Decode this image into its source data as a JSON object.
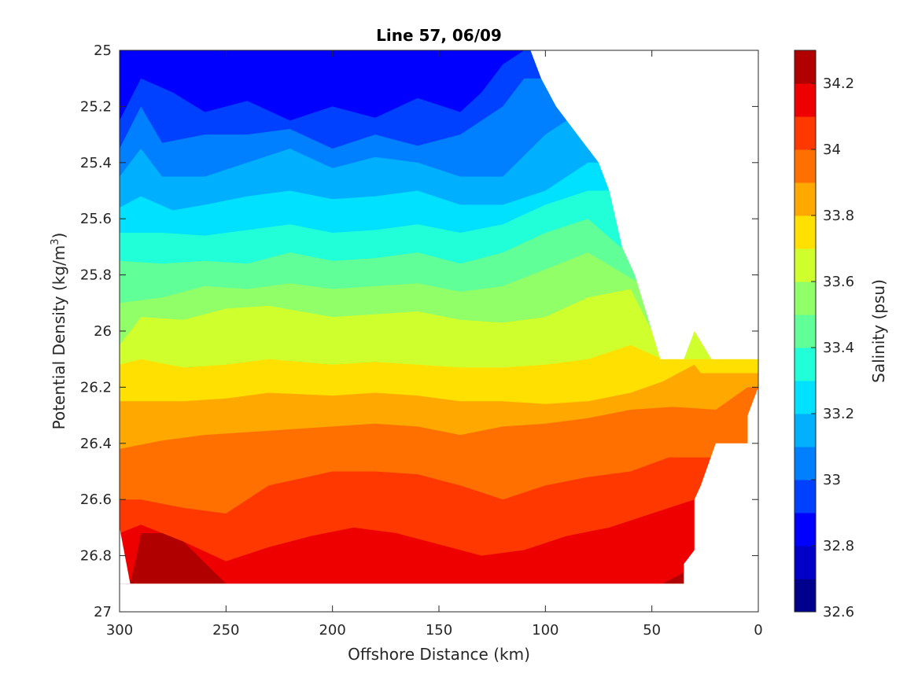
{
  "chart_data": {
    "type": "contourf",
    "title": "Line 57, 06/09",
    "xlabel": "Offshore Distance (km)",
    "ylabel_base": "Potential Density (kg/m",
    "ylabel_sup": "3",
    "ylabel_close": ")",
    "colorbar_label": "Salinity (psu)",
    "xlim": [
      300,
      0
    ],
    "ylim": [
      25,
      27
    ],
    "y_reversed": true,
    "x_ticks": [
      300,
      250,
      200,
      150,
      100,
      50,
      0
    ],
    "x_tick_labels": [
      "300",
      "250",
      "200",
      "150",
      "100",
      "50",
      "0"
    ],
    "y_ticks": [
      25,
      25.2,
      25.4,
      25.6,
      25.8,
      26,
      26.2,
      26.4,
      26.6,
      26.8,
      27
    ],
    "y_tick_labels": [
      "25",
      "25.2",
      "25.4",
      "25.6",
      "25.8",
      "26",
      "26.2",
      "26.4",
      "26.6",
      "26.8",
      "27"
    ],
    "colorbar": {
      "limits": [
        32.6,
        34.3
      ],
      "levels": [
        32.6,
        32.7,
        32.8,
        32.9,
        33.0,
        33.1,
        33.2,
        33.3,
        33.4,
        33.5,
        33.6,
        33.7,
        33.8,
        33.9,
        34.0,
        34.1,
        34.2,
        34.3
      ],
      "tick_values": [
        32.6,
        32.8,
        33.0,
        33.2,
        33.4,
        33.6,
        33.8,
        34.0,
        34.2
      ],
      "tick_labels": [
        "32.6",
        "32.8",
        "33",
        "33.2",
        "33.4",
        "33.6",
        "33.8",
        "34",
        "34.2"
      ],
      "colors": [
        "#00008f",
        "#0000c8",
        "#0000ff",
        "#0040ff",
        "#0080ff",
        "#00b0ff",
        "#00e0ff",
        "#20ffd8",
        "#60ff98",
        "#90ff68",
        "#d0ff2e",
        "#ffe000",
        "#ffa800",
        "#ff7000",
        "#ff3800",
        "#ee0000",
        "#b00000"
      ]
    },
    "data_region": {
      "right_edge_x": [
        107,
        102,
        95,
        85,
        75,
        70,
        64,
        58,
        50,
        46,
        43,
        35,
        30,
        22,
        15,
        10,
        0,
        0,
        5,
        5,
        20,
        27,
        30,
        30,
        35,
        35,
        42,
        295
      ],
      "right_edge_y": [
        25,
        25.1,
        25.2,
        25.3,
        25.4,
        25.5,
        25.7,
        25.8,
        26.0,
        26.1,
        26.1,
        26.1,
        26.0,
        26.1,
        26.1,
        26.1,
        26.1,
        26.2,
        26.3,
        26.4,
        26.4,
        26.55,
        26.6,
        26.78,
        26.83,
        26.9,
        26.9,
        26.9
      ]
    },
    "contour_bands": [
      {
        "level": 32.9,
        "x": [
          300,
          290,
          275,
          260,
          240,
          220,
          200,
          180,
          160,
          140,
          130,
          120,
          110,
          107
        ],
        "y": [
          25.25,
          25.1,
          25.15,
          25.22,
          25.18,
          25.25,
          25.2,
          25.24,
          25.17,
          25.22,
          25.15,
          25.05,
          25,
          25
        ]
      },
      {
        "level": 33.0,
        "x": [
          300,
          290,
          280,
          260,
          240,
          220,
          200,
          180,
          160,
          140,
          120,
          110,
          100
        ],
        "y": [
          25.35,
          25.2,
          25.33,
          25.3,
          25.3,
          25.28,
          25.35,
          25.3,
          25.34,
          25.3,
          25.2,
          25.1,
          25.1
        ]
      },
      {
        "level": 33.1,
        "x": [
          300,
          290,
          280,
          260,
          240,
          220,
          200,
          180,
          160,
          140,
          120,
          100,
          90,
          85
        ],
        "y": [
          25.45,
          25.35,
          25.45,
          25.45,
          25.4,
          25.35,
          25.42,
          25.38,
          25.4,
          25.45,
          25.45,
          25.3,
          25.25,
          25.3
        ]
      },
      {
        "level": 33.2,
        "x": [
          300,
          290,
          275,
          260,
          240,
          220,
          200,
          180,
          160,
          140,
          120,
          100,
          80,
          75
        ],
        "y": [
          25.56,
          25.52,
          25.57,
          25.55,
          25.52,
          25.5,
          25.53,
          25.52,
          25.5,
          25.55,
          25.55,
          25.5,
          25.4,
          25.4
        ]
      },
      {
        "level": 33.3,
        "x": [
          300,
          280,
          260,
          240,
          220,
          200,
          180,
          160,
          140,
          120,
          100,
          80,
          70
        ],
        "y": [
          25.65,
          25.65,
          25.66,
          25.64,
          25.62,
          25.65,
          25.64,
          25.62,
          25.65,
          25.62,
          25.55,
          25.5,
          25.5
        ]
      },
      {
        "level": 33.4,
        "x": [
          300,
          280,
          260,
          240,
          220,
          200,
          180,
          160,
          140,
          120,
          100,
          80,
          65
        ],
        "y": [
          25.75,
          25.76,
          25.75,
          25.76,
          25.72,
          25.75,
          25.74,
          25.72,
          25.76,
          25.72,
          25.65,
          25.6,
          25.7
        ]
      },
      {
        "level": 33.5,
        "x": [
          300,
          280,
          260,
          240,
          220,
          200,
          180,
          160,
          140,
          120,
          100,
          80,
          58
        ],
        "y": [
          25.9,
          25.88,
          25.84,
          25.85,
          25.83,
          25.85,
          25.84,
          25.83,
          25.86,
          25.84,
          25.78,
          25.72,
          25.82
        ]
      },
      {
        "level": 33.6,
        "x": [
          300,
          290,
          270,
          250,
          230,
          200,
          180,
          160,
          140,
          120,
          100,
          80,
          60,
          50
        ],
        "y": [
          26.05,
          25.95,
          25.96,
          25.92,
          25.91,
          25.95,
          25.94,
          25.93,
          25.96,
          25.97,
          25.95,
          25.88,
          25.85,
          26.0
        ]
      },
      {
        "level": 33.7,
        "x": [
          300,
          290,
          270,
          250,
          230,
          200,
          180,
          160,
          140,
          120,
          100,
          80,
          60,
          45
        ],
        "y": [
          26.12,
          26.1,
          26.13,
          26.12,
          26.1,
          26.12,
          26.11,
          26.12,
          26.13,
          26.13,
          26.12,
          26.1,
          26.05,
          26.1
        ]
      },
      {
        "level": 33.8,
        "x": [
          300,
          290,
          270,
          250,
          230,
          200,
          180,
          160,
          140,
          120,
          100,
          80,
          60,
          45,
          30,
          27
        ],
        "y": [
          26.25,
          26.25,
          26.25,
          26.24,
          26.22,
          26.23,
          26.22,
          26.23,
          26.25,
          26.25,
          26.26,
          26.25,
          26.22,
          26.18,
          26.12,
          26.15
        ]
      },
      {
        "level": 33.9,
        "x": [
          300,
          280,
          260,
          240,
          220,
          200,
          180,
          160,
          140,
          120,
          100,
          80,
          60,
          40,
          20,
          5
        ],
        "y": [
          26.42,
          26.39,
          26.37,
          26.36,
          26.35,
          26.34,
          26.33,
          26.34,
          26.37,
          26.34,
          26.33,
          26.31,
          26.28,
          26.27,
          26.28,
          26.2
        ]
      },
      {
        "level": 34.0,
        "x": [
          300,
          290,
          270,
          250,
          230,
          200,
          180,
          160,
          140,
          120,
          100,
          80,
          60,
          42,
          25
        ],
        "y": [
          26.6,
          26.6,
          26.63,
          26.65,
          26.55,
          26.5,
          26.5,
          26.51,
          26.55,
          26.6,
          26.55,
          26.52,
          26.5,
          26.45,
          26.45
        ]
      },
      {
        "level": 34.1,
        "x": [
          300,
          290,
          270,
          250,
          230,
          210,
          190,
          170,
          150,
          130,
          110,
          90,
          70,
          50,
          30
        ],
        "y": [
          26.72,
          26.69,
          26.75,
          26.82,
          26.77,
          26.73,
          26.7,
          26.72,
          26.76,
          26.8,
          26.78,
          26.73,
          26.7,
          26.65,
          26.6
        ]
      },
      {
        "level": 34.2,
        "x": [
          295,
          292,
          290,
          280,
          270,
          250,
          200,
          160,
          140,
          120,
          100,
          80,
          60,
          45,
          35
        ],
        "y": [
          26.9,
          26.8,
          26.72,
          26.72,
          26.75,
          26.9,
          26.9,
          26.9,
          26.9,
          26.9,
          26.9,
          26.9,
          26.9,
          26.9,
          26.86
        ]
      }
    ]
  }
}
